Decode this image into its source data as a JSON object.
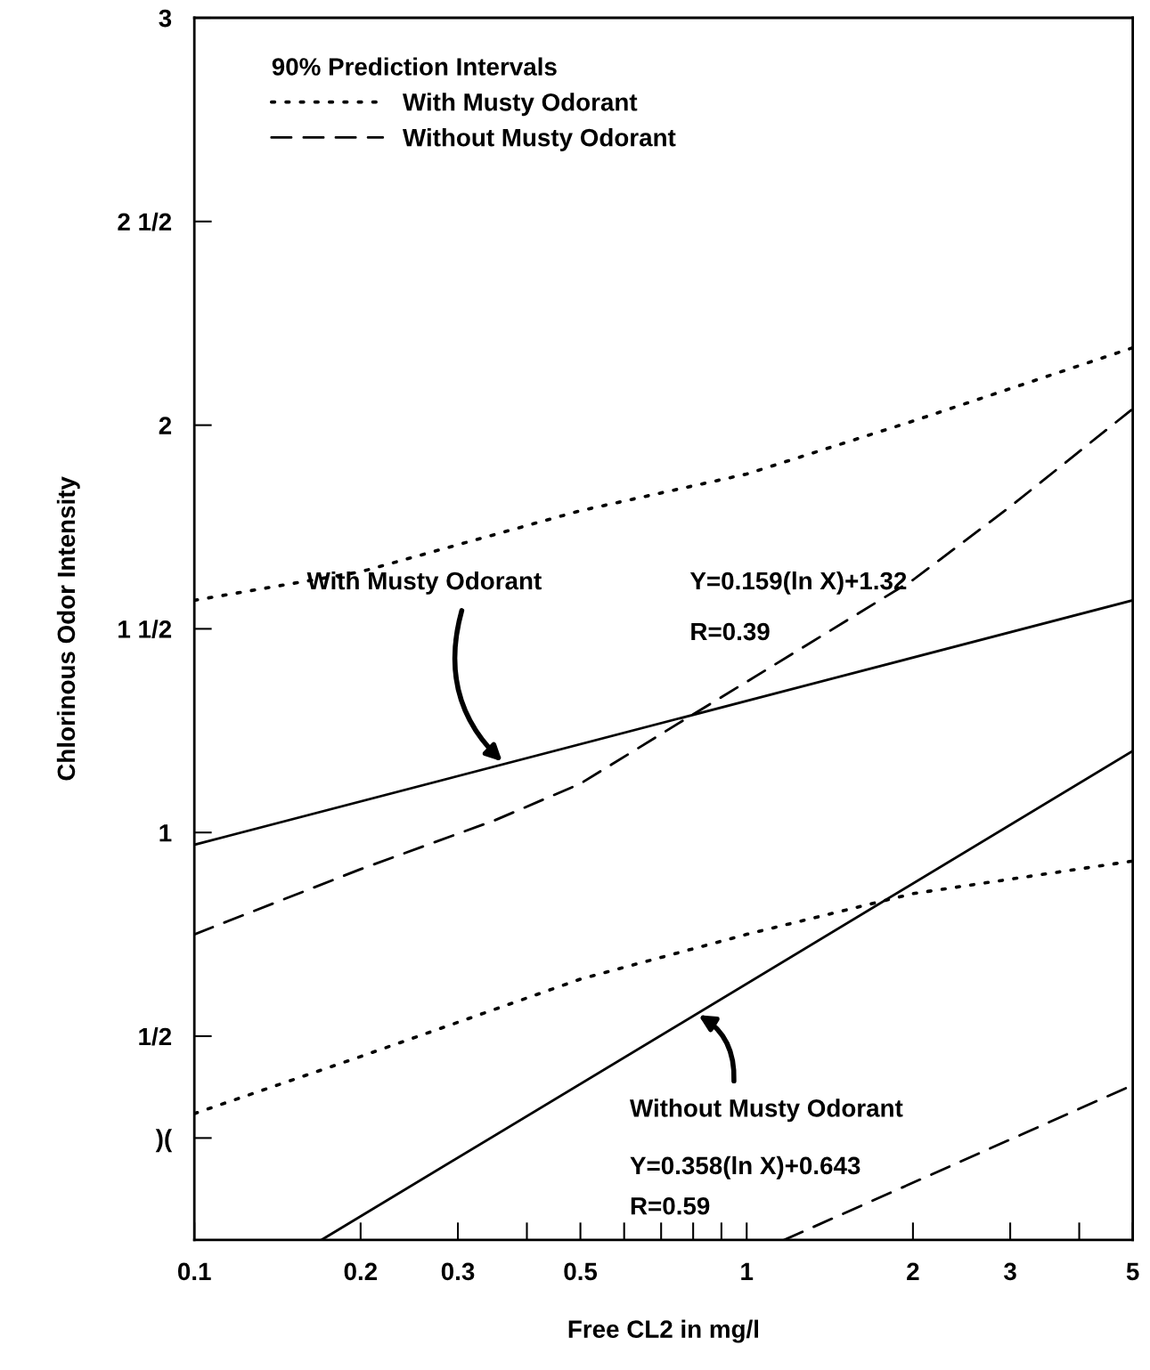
{
  "chart_data": {
    "type": "line",
    "xlabel": "Free CL2 in mg/l",
    "ylabel": "Chlorinous Odor Intensity",
    "legend_title": "90% Prediction Intervals",
    "legend": "top left",
    "grid": false,
    "marker": "none",
    "log": "x",
    "xlim": [
      0.1,
      5
    ],
    "xticks": [
      0.1,
      0.2,
      0.3,
      0.5,
      1,
      2,
      3,
      5
    ],
    "ylim": [
      0,
      3
    ],
    "yticks": [
      {
        "value": 0.25,
        "label": ")("
      },
      {
        "value": 0.5,
        "label": "1/2"
      },
      1,
      {
        "value": 1.5,
        "label": "1 1/2"
      },
      2,
      {
        "value": 2.5,
        "label": "2 1/2"
      },
      3
    ],
    "series": [
      {
        "name": "With Musty Odorant",
        "color": "#000000",
        "line_style": "dotted",
        "x": [
          0.1,
          0.2,
          0.5,
          1,
          2,
          5
        ],
        "values": [
          1.57,
          1.64,
          1.79,
          1.88,
          2.01,
          2.19
        ]
      },
      {
        "color": "#000000",
        "line_style": "dotted",
        "x": [
          0.1,
          0.2,
          0.5,
          1,
          2,
          5
        ],
        "values": [
          0.31,
          0.45,
          0.64,
          0.75,
          0.85,
          0.93
        ]
      },
      {
        "name": "Without Musty Odorant",
        "color": "#000000",
        "line_style": "dashed",
        "x": [
          0.1,
          0.2,
          0.35,
          0.5,
          0.8,
          1,
          2,
          3,
          5
        ],
        "values": [
          0.75,
          0.91,
          1.03,
          1.12,
          1.29,
          1.37,
          1.62,
          1.8,
          2.04
        ]
      },
      {
        "color": "#000000",
        "line_style": "dashed",
        "x": [
          1.17,
          5
        ],
        "values": [
          0,
          0.38
        ]
      },
      {
        "color": "#000000",
        "line_style": "solid",
        "x": [
          0.1,
          5
        ],
        "values": [
          0.97,
          1.57
        ]
      },
      {
        "color": "#000000",
        "line_style": "solid",
        "x": [
          0.17,
          5
        ],
        "values": [
          0,
          1.2
        ]
      }
    ],
    "annotations": [
      "With Musty Odorant",
      "Y=0.159(ln X)+1.32",
      "R=0.39",
      "Without Musty Odorant",
      "Y=0.358(ln X)+0.643",
      "R=0.59"
    ]
  }
}
